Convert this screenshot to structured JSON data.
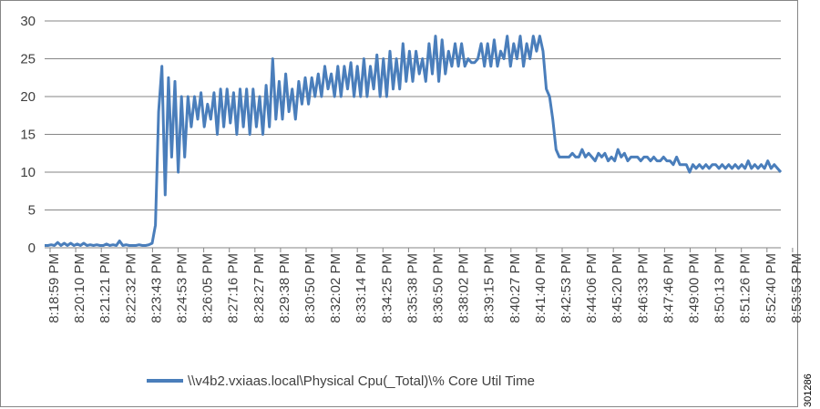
{
  "chart_data": {
    "type": "line",
    "title": "",
    "xlabel": "",
    "ylabel": "",
    "ylim": [
      0,
      30
    ],
    "yticks": [
      0,
      5,
      10,
      15,
      20,
      25,
      30
    ],
    "grid": "horizontal",
    "legend_position": "bottom",
    "line_color": "#4a7ebb",
    "x_tick_labels": [
      "8:18:59 PM",
      "8:20:10 PM",
      "8:21:21 PM",
      "8:22:32 PM",
      "8:23:43 PM",
      "8:24:53 PM",
      "8:26:05 PM",
      "8:27:16 PM",
      "8:28:27 PM",
      "8:29:38 PM",
      "8:30:50 PM",
      "8:32:02 PM",
      "8:33:14 PM",
      "8:34:25 PM",
      "8:35:38 PM",
      "8:36:50 PM",
      "8:38:02 PM",
      "8:39:15 PM",
      "8:40:27 PM",
      "8:41:40 PM",
      "8:42:53 PM",
      "8:44:06 PM",
      "8:45:20 PM",
      "8:46:33 PM",
      "8:47:46 PM",
      "8:49:00 PM",
      "8:50:13 PM",
      "8:51:26 PM",
      "8:52:40 PM",
      "8:53:53 PM"
    ],
    "series": [
      {
        "name": "\\\\v4b2.vxiaas.local\\Physical Cpu(_Total)\\% Core Util Time",
        "values": [
          0.3,
          0.3,
          0.4,
          0.3,
          0.7,
          0.3,
          0.6,
          0.3,
          0.6,
          0.3,
          0.5,
          0.3,
          0.6,
          0.3,
          0.4,
          0.3,
          0.4,
          0.3,
          0.3,
          0.5,
          0.3,
          0.4,
          0.3,
          0.9,
          0.3,
          0.4,
          0.3,
          0.3,
          0.3,
          0.4,
          0.3,
          0.3,
          0.4,
          0.6,
          3,
          18,
          24,
          7,
          22.5,
          12,
          22,
          10,
          20,
          12,
          20,
          16,
          20,
          17,
          20.5,
          16,
          19,
          17,
          20.5,
          15,
          21,
          16,
          21,
          16.5,
          20.5,
          15,
          21,
          16,
          21,
          15,
          21,
          16,
          20,
          15,
          21.5,
          16,
          25,
          17,
          22,
          17,
          23,
          18,
          21,
          17,
          22,
          19,
          22.5,
          19,
          22.5,
          20,
          23,
          20,
          24,
          21,
          23,
          20,
          24,
          20,
          24,
          21,
          24.5,
          20,
          24,
          20,
          25,
          20,
          24,
          21,
          25.5,
          20,
          25,
          20,
          26,
          21,
          25,
          21,
          27,
          22,
          26,
          22,
          26,
          23,
          25,
          22,
          27,
          23,
          28,
          22,
          27.5,
          23,
          26,
          24,
          27,
          24,
          27,
          24,
          25,
          24.5,
          24.5,
          25,
          27,
          24,
          27,
          24,
          27.5,
          24,
          26,
          25,
          28,
          24,
          27,
          25,
          28,
          24,
          27,
          25,
          28,
          26,
          28,
          26,
          21,
          20,
          17,
          13,
          12,
          12,
          12,
          12,
          12.5,
          12,
          12,
          13,
          12,
          12.5,
          12,
          11.5,
          12.5,
          12,
          12.5,
          11.5,
          12,
          11.5,
          13,
          12,
          12.5,
          11.5,
          12,
          12,
          12,
          11.5,
          12,
          12,
          11.5,
          12,
          11.5,
          11.5,
          12,
          11.5,
          11.5,
          11,
          12,
          11,
          11,
          11,
          10,
          11,
          10.5,
          11,
          10.5,
          11,
          10.5,
          11,
          11,
          10.5,
          11,
          10.5,
          11,
          10.5,
          11,
          10.5,
          11,
          10.5,
          11.5,
          10.5,
          11,
          10.5,
          11,
          10.5,
          11.5,
          10.5,
          11,
          10.5,
          10
        ]
      }
    ]
  },
  "figure_id": "301286"
}
